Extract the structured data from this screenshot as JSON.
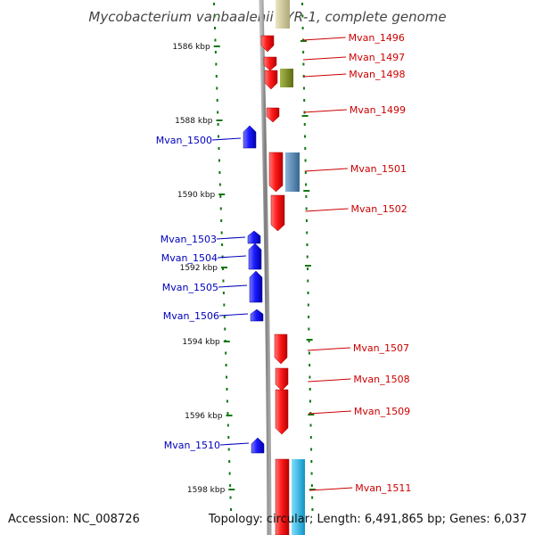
{
  "title": "Mycobacterium vanbaalenii PYR-1, complete genome",
  "footer": {
    "accession": "Accession: NC_008726",
    "topology": "Topology: circular; Length: 6,491,865 bp; Genes: 6,037"
  },
  "colors": {
    "forward_gene": "#ee1111",
    "reverse_gene": "#1111ee",
    "label_forward": "#cc0000",
    "label_reverse": "#0000bb",
    "ruler": "#117711",
    "backbone": "#8a8a8a",
    "olive_feature": "#7f8f22",
    "steelblue_feature": "#4d86b8",
    "cyan_feature": "#1ab8e8",
    "tan_feature": "#c8c095"
  },
  "ruler_ticks": [
    "1586 kbp",
    "1588 kbp",
    "1590 kbp",
    "1592 kbp",
    "1594 kbp",
    "1596 kbp",
    "1598 kbp"
  ],
  "genes": [
    {
      "name": "Mvan_1496",
      "strand": "forward"
    },
    {
      "name": "Mvan_1497",
      "strand": "forward"
    },
    {
      "name": "Mvan_1498",
      "strand": "forward"
    },
    {
      "name": "Mvan_1499",
      "strand": "forward"
    },
    {
      "name": "Mvan_1500",
      "strand": "reverse"
    },
    {
      "name": "Mvan_1501",
      "strand": "forward"
    },
    {
      "name": "Mvan_1502",
      "strand": "forward"
    },
    {
      "name": "Mvan_1503",
      "strand": "reverse"
    },
    {
      "name": "Mvan_1504",
      "strand": "reverse"
    },
    {
      "name": "Mvan_1505",
      "strand": "reverse"
    },
    {
      "name": "Mvan_1506",
      "strand": "reverse"
    },
    {
      "name": "Mvan_1507",
      "strand": "forward"
    },
    {
      "name": "Mvan_1508",
      "strand": "forward"
    },
    {
      "name": "Mvan_1509",
      "strand": "forward"
    },
    {
      "name": "Mvan_1510",
      "strand": "reverse"
    },
    {
      "name": "Mvan_1511",
      "strand": "forward"
    }
  ]
}
